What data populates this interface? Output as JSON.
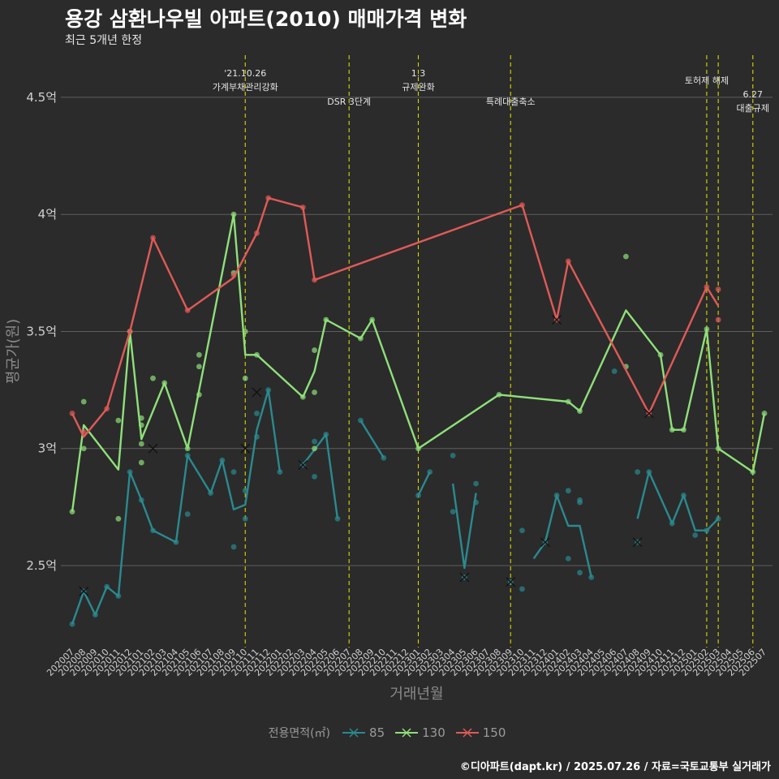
{
  "chart_data": {
    "type": "line",
    "title": "용강 삼환나우빌 아파트(2010) 매매가격 변화",
    "subtitle": "최근 5개년 한정",
    "xlabel": "거래년월",
    "ylabel": "평균가(원)",
    "caption": "©디아파트(dapt.kr) / 2025.07.26 / 자료=국토교통부 실거래가",
    "ylim": [
      2.15,
      4.68
    ],
    "y_ticks": [
      {
        "value": 2.5,
        "label": "2.5억"
      },
      {
        "value": 3.0,
        "label": "3억"
      },
      {
        "value": 3.5,
        "label": "3.5억"
      },
      {
        "value": 4.0,
        "label": "4억"
      },
      {
        "value": 4.5,
        "label": "4.5억"
      }
    ],
    "months": [
      "202007",
      "202008",
      "202009",
      "202010",
      "202011",
      "202012",
      "202101",
      "202102",
      "202103",
      "202104",
      "202105",
      "202106",
      "202107",
      "202108",
      "202109",
      "202110",
      "202111",
      "202112",
      "202201",
      "202202",
      "202203",
      "202204",
      "202205",
      "202206",
      "202207",
      "202208",
      "202209",
      "202210",
      "202211",
      "202212",
      "202301",
      "202302",
      "202303",
      "202304",
      "202305",
      "202306",
      "202307",
      "202308",
      "202309",
      "202310",
      "202311",
      "202312",
      "202401",
      "202402",
      "202403",
      "202404",
      "202405",
      "202406",
      "202407",
      "202408",
      "202409",
      "202410",
      "202411",
      "202412",
      "202501",
      "202502",
      "202503",
      "202504",
      "202505",
      "202506",
      "202507"
    ],
    "legend": {
      "title": "전용면적(㎡)",
      "position": "bottom"
    },
    "series": [
      {
        "name": "85",
        "color": "#2a8a8f",
        "segments": [
          [
            [
              0,
              2.25
            ],
            [
              1,
              2.39
            ],
            [
              2,
              2.29
            ],
            [
              3,
              2.41
            ],
            [
              4,
              2.37
            ],
            [
              5,
              2.9
            ],
            [
              6,
              2.78
            ],
            [
              7,
              2.65
            ],
            [
              9,
              2.6
            ],
            [
              10,
              2.97
            ],
            [
              12,
              2.81
            ],
            [
              13,
              2.95
            ],
            [
              14,
              2.74
            ],
            [
              15,
              2.76
            ],
            [
              16,
              3.08
            ],
            [
              17,
              3.25
            ],
            [
              18,
              2.9
            ]
          ],
          [
            [
              20,
              2.93
            ],
            [
              22,
              3.06
            ],
            [
              23,
              2.7
            ]
          ],
          [
            [
              25,
              3.12
            ],
            [
              27,
              2.96
            ]
          ],
          [
            [
              30,
              2.8
            ],
            [
              31,
              2.9
            ]
          ],
          [
            [
              33,
              2.85
            ],
            [
              34,
              2.49
            ],
            [
              35,
              2.81
            ]
          ],
          [
            [
              40,
              2.53
            ],
            [
              41,
              2.6
            ],
            [
              42,
              2.8
            ],
            [
              43,
              2.67
            ],
            [
              44,
              2.67
            ],
            [
              45,
              2.45
            ]
          ],
          [
            [
              49,
              2.7
            ],
            [
              50,
              2.9
            ],
            [
              52,
              2.68
            ],
            [
              53,
              2.8
            ],
            [
              54,
              2.65
            ],
            [
              55,
              2.65
            ],
            [
              56,
              2.7
            ]
          ]
        ],
        "points": [
          [
            0,
            2.25
          ],
          [
            1,
            2.39
          ],
          [
            2,
            2.29
          ],
          [
            3,
            2.41
          ],
          [
            4,
            2.37
          ],
          [
            5,
            2.9
          ],
          [
            6,
            2.78
          ],
          [
            7,
            2.65
          ],
          [
            9,
            2.6
          ],
          [
            10,
            2.97
          ],
          [
            10,
            2.72
          ],
          [
            12,
            2.81
          ],
          [
            13,
            2.95
          ],
          [
            14,
            2.58
          ],
          [
            14,
            2.9
          ],
          [
            15,
            2.7
          ],
          [
            15,
            2.82
          ],
          [
            16,
            3.05
          ],
          [
            16,
            3.15
          ],
          [
            17,
            3.25
          ],
          [
            18,
            2.9
          ],
          [
            20,
            2.93
          ],
          [
            21,
            3.03
          ],
          [
            21,
            2.88
          ],
          [
            22,
            3.06
          ],
          [
            23,
            2.7
          ],
          [
            25,
            3.12
          ],
          [
            27,
            2.96
          ],
          [
            30,
            2.8
          ],
          [
            31,
            2.9
          ],
          [
            33,
            2.73
          ],
          [
            33,
            2.97
          ],
          [
            34,
            2.45
          ],
          [
            35,
            2.77
          ],
          [
            35,
            2.85
          ],
          [
            38,
            2.43
          ],
          [
            39,
            2.65
          ],
          [
            39,
            2.4
          ],
          [
            41,
            2.6
          ],
          [
            42,
            2.8
          ],
          [
            43,
            2.82
          ],
          [
            43,
            2.53
          ],
          [
            44,
            2.77
          ],
          [
            44,
            2.78
          ],
          [
            44,
            2.47
          ],
          [
            45,
            2.45
          ],
          [
            47,
            3.33
          ],
          [
            49,
            2.9
          ],
          [
            49,
            2.6
          ],
          [
            50,
            2.9
          ],
          [
            52,
            2.68
          ],
          [
            53,
            2.8
          ],
          [
            54,
            2.63
          ],
          [
            55,
            2.65
          ],
          [
            56,
            2.7
          ]
        ],
        "x_markers": [
          [
            1,
            2.39
          ],
          [
            16,
            3.24
          ],
          [
            20,
            2.93
          ],
          [
            34,
            2.45
          ],
          [
            38,
            2.43
          ],
          [
            41,
            2.6
          ],
          [
            49,
            2.6
          ]
        ]
      },
      {
        "name": "130",
        "color": "#8fe07a",
        "segments": [
          [
            [
              0,
              2.73
            ],
            [
              1,
              3.1
            ],
            [
              4,
              2.91
            ],
            [
              5,
              3.5
            ],
            [
              6,
              3.04
            ],
            [
              8,
              3.28
            ],
            [
              10,
              3.0
            ],
            [
              14,
              4.0
            ],
            [
              15,
              3.4
            ],
            [
              16,
              3.4
            ],
            [
              20,
              3.22
            ],
            [
              21,
              3.33
            ],
            [
              22,
              3.55
            ],
            [
              25,
              3.47
            ],
            [
              26,
              3.55
            ],
            [
              30,
              3.0
            ],
            [
              37,
              3.23
            ],
            [
              43,
              3.2
            ],
            [
              44,
              3.16
            ],
            [
              48,
              3.59
            ],
            [
              51,
              3.4
            ],
            [
              52,
              3.08
            ],
            [
              53,
              3.08
            ],
            [
              55,
              3.51
            ],
            [
              56,
              3.0
            ],
            [
              59,
              2.9
            ],
            [
              60,
              3.15
            ]
          ]
        ],
        "points": [
          [
            0,
            2.73
          ],
          [
            1,
            3.2
          ],
          [
            1,
            3.0
          ],
          [
            4,
            2.7
          ],
          [
            4,
            3.12
          ],
          [
            5,
            3.5
          ],
          [
            6,
            3.13
          ],
          [
            6,
            3.1
          ],
          [
            6,
            3.02
          ],
          [
            6,
            2.94
          ],
          [
            7,
            3.3
          ],
          [
            8,
            3.28
          ],
          [
            10,
            3.0
          ],
          [
            11,
            3.35
          ],
          [
            11,
            3.4
          ],
          [
            11,
            3.23
          ],
          [
            14,
            4.0
          ],
          [
            14,
            3.75
          ],
          [
            15,
            3.5
          ],
          [
            15,
            3.3
          ],
          [
            16,
            3.4
          ],
          [
            20,
            3.22
          ],
          [
            21,
            3.24
          ],
          [
            21,
            3.42
          ],
          [
            21,
            3.0
          ],
          [
            22,
            3.55
          ],
          [
            25,
            3.47
          ],
          [
            26,
            3.55
          ],
          [
            30,
            3.0
          ],
          [
            37,
            3.23
          ],
          [
            43,
            3.2
          ],
          [
            44,
            3.16
          ],
          [
            48,
            3.35
          ],
          [
            48,
            3.82
          ],
          [
            51,
            3.4
          ],
          [
            52,
            3.08
          ],
          [
            53,
            3.08
          ],
          [
            55,
            3.51
          ],
          [
            56,
            3.0
          ],
          [
            59,
            2.9
          ],
          [
            60,
            3.15
          ]
        ],
        "x_markers": [
          [
            7,
            3.0
          ],
          [
            15,
            3.0
          ]
        ]
      },
      {
        "name": "150",
        "color": "#e05a57",
        "segments": [
          [
            [
              0,
              3.15
            ],
            [
              1,
              3.05
            ],
            [
              3,
              3.17
            ],
            [
              5,
              3.5
            ],
            [
              7,
              3.9
            ],
            [
              10,
              3.59
            ],
            [
              14,
              3.73
            ],
            [
              16,
              3.92
            ],
            [
              17,
              4.07
            ],
            [
              20,
              4.03
            ],
            [
              21,
              3.72
            ],
            [
              39,
              4.04
            ],
            [
              42,
              3.55
            ],
            [
              43,
              3.8
            ],
            [
              50,
              3.15
            ],
            [
              55,
              3.69
            ],
            [
              56,
              3.61
            ]
          ]
        ],
        "points": [
          [
            0,
            3.15
          ],
          [
            1,
            3.07
          ],
          [
            3,
            3.17
          ],
          [
            5,
            3.5
          ],
          [
            7,
            3.9
          ],
          [
            10,
            3.59
          ],
          [
            14,
            3.74
          ],
          [
            16,
            3.92
          ],
          [
            17,
            4.07
          ],
          [
            20,
            4.03
          ],
          [
            21,
            3.72
          ],
          [
            39,
            4.04
          ],
          [
            42,
            3.55
          ],
          [
            43,
            3.8
          ],
          [
            50,
            3.15
          ],
          [
            55,
            3.69
          ],
          [
            56,
            3.68
          ],
          [
            56,
            3.55
          ]
        ],
        "x_markers": [
          [
            42,
            3.55
          ],
          [
            50,
            3.15
          ]
        ]
      }
    ],
    "annotations": [
      {
        "x": 15,
        "lines": [
          "'21.10.26",
          "가계부채관리강화"
        ],
        "level": "top"
      },
      {
        "x": 24,
        "lines": [
          "DSR 3단계"
        ],
        "level": "low"
      },
      {
        "x": 30,
        "lines": [
          "1.3",
          "규제완화"
        ],
        "level": "top"
      },
      {
        "x": 38,
        "lines": [
          "특례대출축소"
        ],
        "level": "low"
      },
      {
        "x": 55,
        "lines": [
          "토허제 해제"
        ],
        "level": "mid"
      },
      {
        "x": 56,
        "lines": [],
        "level": "none"
      },
      {
        "x": 59,
        "lines": [
          "6.27",
          "대출규제"
        ],
        "level": "low"
      }
    ]
  }
}
